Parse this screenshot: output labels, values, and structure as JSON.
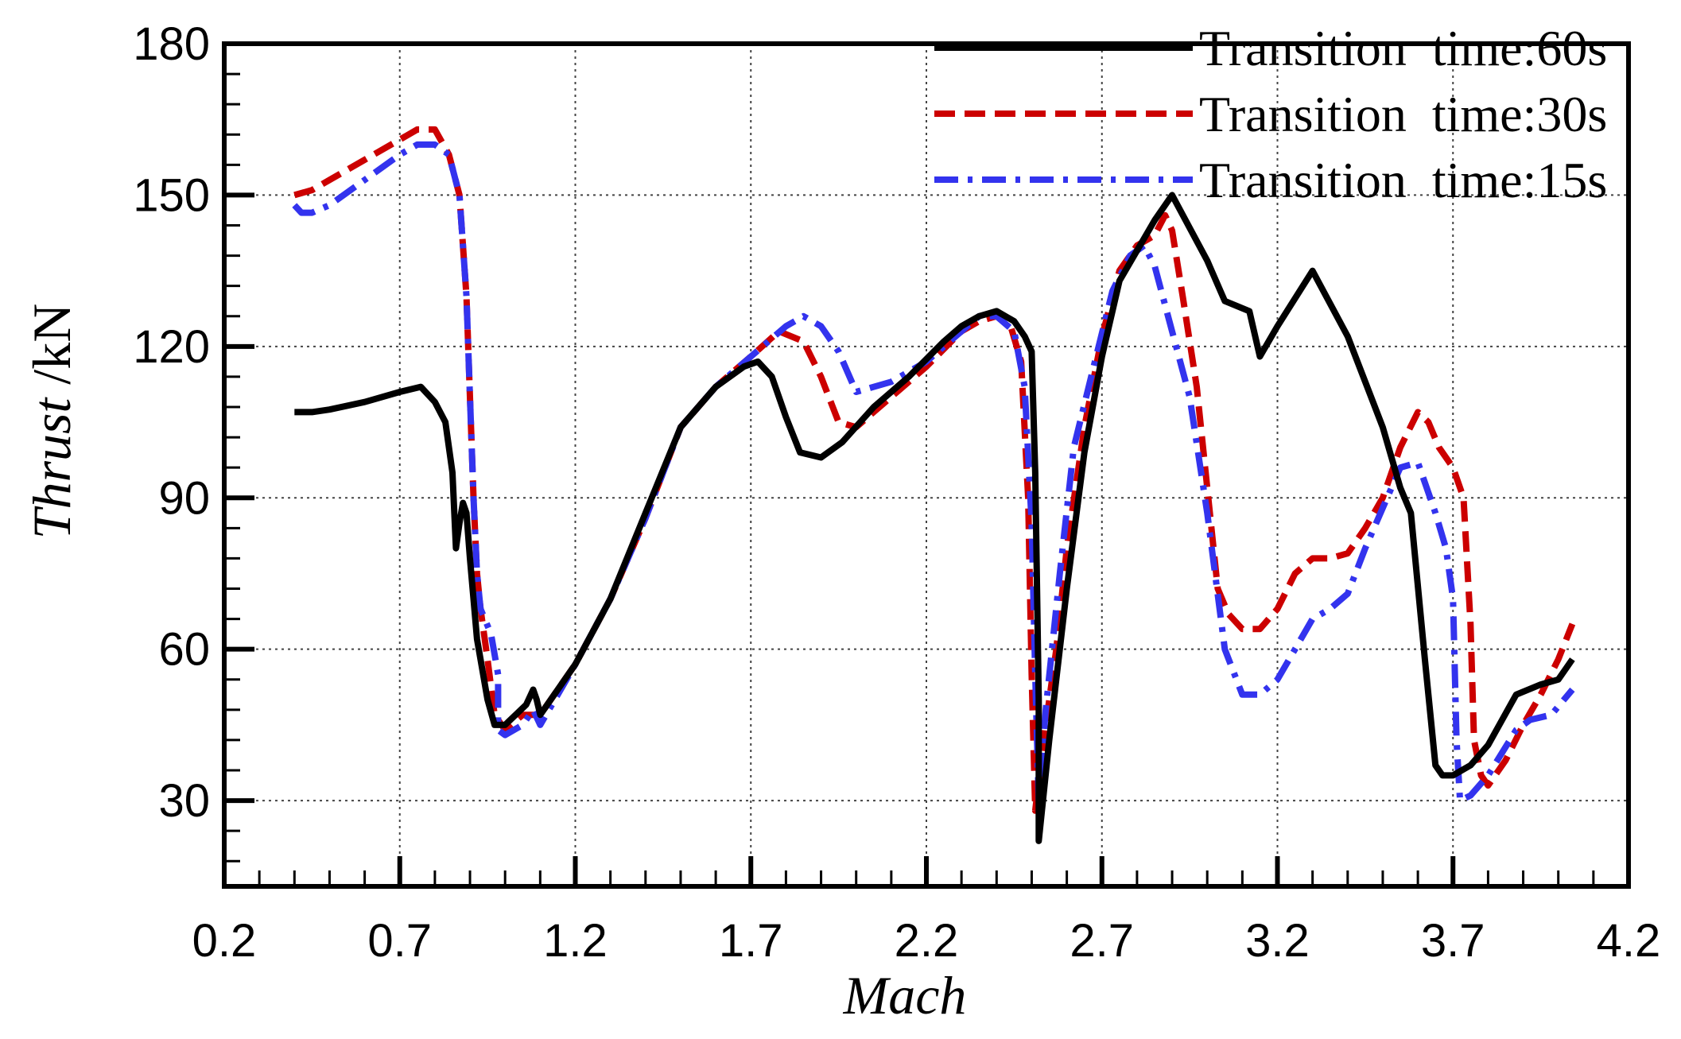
{
  "chart_data": {
    "type": "line",
    "xlabel": "Mach",
    "ylabel_italic": "Thrust",
    "ylabel_unit": " /kN",
    "xlim": [
      0.2,
      4.2
    ],
    "ylim": [
      13,
      180
    ],
    "x_ticks": [
      0.2,
      0.7,
      1.2,
      1.7,
      2.2,
      2.7,
      3.2,
      3.7,
      4.2
    ],
    "x_tick_labels": [
      "0.2",
      "0.7",
      "1.2",
      "1.7",
      "2.2",
      "2.7",
      "3.2",
      "3.7",
      "4.2"
    ],
    "y_ticks": [
      30,
      60,
      90,
      120,
      150,
      180
    ],
    "y_tick_labels": [
      "30",
      "60",
      "90",
      "120",
      "150",
      "180"
    ],
    "grid": true,
    "legend_position": "top-right",
    "series": [
      {
        "name": "Transition  time:60s",
        "color": "#000000",
        "style": "solid",
        "points": [
          [
            0.4,
            107
          ],
          [
            0.45,
            107
          ],
          [
            0.5,
            107.5
          ],
          [
            0.6,
            109
          ],
          [
            0.7,
            111
          ],
          [
            0.76,
            112
          ],
          [
            0.8,
            109
          ],
          [
            0.83,
            105
          ],
          [
            0.85,
            95
          ],
          [
            0.86,
            80
          ],
          [
            0.87,
            85
          ],
          [
            0.88,
            89
          ],
          [
            0.89,
            87
          ],
          [
            0.9,
            78
          ],
          [
            0.92,
            62
          ],
          [
            0.95,
            50
          ],
          [
            0.97,
            45
          ],
          [
            1.0,
            45
          ],
          [
            1.03,
            47
          ],
          [
            1.06,
            49
          ],
          [
            1.08,
            52
          ],
          [
            1.09,
            50
          ],
          [
            1.1,
            47
          ],
          [
            1.2,
            57
          ],
          [
            1.3,
            70
          ],
          [
            1.4,
            87
          ],
          [
            1.5,
            104
          ],
          [
            1.6,
            112
          ],
          [
            1.68,
            116
          ],
          [
            1.72,
            117
          ],
          [
            1.76,
            114
          ],
          [
            1.8,
            106
          ],
          [
            1.84,
            99
          ],
          [
            1.9,
            98
          ],
          [
            1.96,
            101
          ],
          [
            2.05,
            108
          ],
          [
            2.15,
            114
          ],
          [
            2.25,
            121
          ],
          [
            2.3,
            124
          ],
          [
            2.35,
            126
          ],
          [
            2.4,
            127
          ],
          [
            2.45,
            125
          ],
          [
            2.48,
            122
          ],
          [
            2.5,
            119
          ],
          [
            2.51,
            95
          ],
          [
            2.52,
            50
          ],
          [
            2.52,
            22
          ],
          [
            2.55,
            42
          ],
          [
            2.6,
            72
          ],
          [
            2.65,
            99
          ],
          [
            2.7,
            118
          ],
          [
            2.75,
            133
          ],
          [
            2.8,
            139
          ],
          [
            2.85,
            145
          ],
          [
            2.9,
            150
          ],
          [
            3.0,
            137
          ],
          [
            3.05,
            129
          ],
          [
            3.12,
            127
          ],
          [
            3.15,
            118
          ],
          [
            3.2,
            124
          ],
          [
            3.3,
            135
          ],
          [
            3.4,
            122
          ],
          [
            3.45,
            113
          ],
          [
            3.5,
            104
          ],
          [
            3.55,
            92
          ],
          [
            3.58,
            87
          ],
          [
            3.62,
            58
          ],
          [
            3.65,
            37
          ],
          [
            3.67,
            35
          ],
          [
            3.7,
            35
          ],
          [
            3.75,
            37
          ],
          [
            3.8,
            41
          ],
          [
            3.88,
            51
          ],
          [
            3.95,
            53
          ],
          [
            4.0,
            54
          ],
          [
            4.04,
            58
          ]
        ]
      },
      {
        "name": "Transition  time:30s",
        "color": "#cc0000",
        "style": "dashed",
        "points": [
          [
            0.4,
            150
          ],
          [
            0.45,
            151
          ],
          [
            0.5,
            153
          ],
          [
            0.6,
            157
          ],
          [
            0.7,
            161
          ],
          [
            0.75,
            163
          ],
          [
            0.8,
            163
          ],
          [
            0.84,
            158
          ],
          [
            0.87,
            150
          ],
          [
            0.89,
            130
          ],
          [
            0.9,
            110
          ],
          [
            0.91,
            90
          ],
          [
            0.92,
            75
          ],
          [
            0.93,
            68
          ],
          [
            0.95,
            58
          ],
          [
            0.97,
            47
          ],
          [
            1.0,
            44
          ],
          [
            1.05,
            47
          ],
          [
            1.1,
            47
          ],
          [
            1.2,
            57
          ],
          [
            1.3,
            70
          ],
          [
            1.4,
            86
          ],
          [
            1.5,
            104
          ],
          [
            1.6,
            112
          ],
          [
            1.7,
            118
          ],
          [
            1.78,
            123
          ],
          [
            1.85,
            121
          ],
          [
            1.9,
            114
          ],
          [
            1.95,
            105
          ],
          [
            2.0,
            104
          ],
          [
            2.1,
            110
          ],
          [
            2.2,
            116
          ],
          [
            2.3,
            123
          ],
          [
            2.35,
            125
          ],
          [
            2.4,
            126
          ],
          [
            2.44,
            124
          ],
          [
            2.47,
            117
          ],
          [
            2.49,
            90
          ],
          [
            2.5,
            55
          ],
          [
            2.51,
            28
          ],
          [
            2.53,
            40
          ],
          [
            2.57,
            60
          ],
          [
            2.6,
            80
          ],
          [
            2.65,
            104
          ],
          [
            2.7,
            122
          ],
          [
            2.75,
            135
          ],
          [
            2.8,
            140
          ],
          [
            2.85,
            142
          ],
          [
            2.88,
            146
          ],
          [
            2.9,
            143
          ],
          [
            2.93,
            130
          ],
          [
            2.97,
            112
          ],
          [
            3.0,
            92
          ],
          [
            3.03,
            72
          ],
          [
            3.06,
            67
          ],
          [
            3.1,
            64
          ],
          [
            3.15,
            64
          ],
          [
            3.2,
            68
          ],
          [
            3.25,
            75
          ],
          [
            3.3,
            78
          ],
          [
            3.35,
            78
          ],
          [
            3.4,
            79
          ],
          [
            3.45,
            84
          ],
          [
            3.5,
            90
          ],
          [
            3.55,
            100
          ],
          [
            3.6,
            107
          ],
          [
            3.63,
            105
          ],
          [
            3.66,
            100
          ],
          [
            3.7,
            96
          ],
          [
            3.73,
            90
          ],
          [
            3.75,
            65
          ],
          [
            3.76,
            42
          ],
          [
            3.78,
            35
          ],
          [
            3.8,
            33
          ],
          [
            3.85,
            38
          ],
          [
            3.9,
            45
          ],
          [
            3.95,
            51
          ],
          [
            4.0,
            58
          ],
          [
            4.04,
            65
          ]
        ]
      },
      {
        "name": "Transition  time:15s",
        "color": "#3333ee",
        "style": "dashdot",
        "points": [
          [
            0.4,
            148
          ],
          [
            0.42,
            146.5
          ],
          [
            0.45,
            146.5
          ],
          [
            0.5,
            148
          ],
          [
            0.6,
            153
          ],
          [
            0.7,
            158
          ],
          [
            0.75,
            160
          ],
          [
            0.8,
            160
          ],
          [
            0.84,
            158
          ],
          [
            0.87,
            150
          ],
          [
            0.89,
            130
          ],
          [
            0.9,
            110
          ],
          [
            0.91,
            90
          ],
          [
            0.92,
            75
          ],
          [
            0.93,
            68
          ],
          [
            0.96,
            63
          ],
          [
            0.98,
            55
          ],
          [
            0.98,
            44
          ],
          [
            1.0,
            43
          ],
          [
            1.05,
            45
          ],
          [
            1.08,
            48
          ],
          [
            1.1,
            45
          ],
          [
            1.2,
            57
          ],
          [
            1.3,
            70
          ],
          [
            1.4,
            86
          ],
          [
            1.5,
            104
          ],
          [
            1.6,
            112
          ],
          [
            1.7,
            118
          ],
          [
            1.8,
            124
          ],
          [
            1.85,
            126
          ],
          [
            1.9,
            124
          ],
          [
            1.95,
            119
          ],
          [
            2.0,
            111
          ],
          [
            2.1,
            113
          ],
          [
            2.2,
            117
          ],
          [
            2.3,
            123
          ],
          [
            2.35,
            126
          ],
          [
            2.4,
            126
          ],
          [
            2.45,
            123
          ],
          [
            2.48,
            112
          ],
          [
            2.5,
            85
          ],
          [
            2.51,
            55
          ],
          [
            2.52,
            30
          ],
          [
            2.54,
            48
          ],
          [
            2.58,
            75
          ],
          [
            2.62,
            100
          ],
          [
            2.68,
            117
          ],
          [
            2.73,
            131
          ],
          [
            2.78,
            138
          ],
          [
            2.82,
            140
          ],
          [
            2.85,
            136
          ],
          [
            2.9,
            123
          ],
          [
            2.95,
            110
          ],
          [
            3.0,
            87
          ],
          [
            3.05,
            60
          ],
          [
            3.1,
            51
          ],
          [
            3.15,
            51
          ],
          [
            3.2,
            54
          ],
          [
            3.25,
            60
          ],
          [
            3.3,
            66
          ],
          [
            3.35,
            68
          ],
          [
            3.4,
            71
          ],
          [
            3.45,
            80
          ],
          [
            3.5,
            88
          ],
          [
            3.55,
            96
          ],
          [
            3.6,
            97
          ],
          [
            3.65,
            87
          ],
          [
            3.68,
            80
          ],
          [
            3.7,
            70
          ],
          [
            3.71,
            42
          ],
          [
            3.72,
            30
          ],
          [
            3.75,
            31
          ],
          [
            3.8,
            35
          ],
          [
            3.88,
            44
          ],
          [
            3.92,
            46
          ],
          [
            3.98,
            47
          ],
          [
            4.04,
            52
          ]
        ]
      }
    ]
  }
}
